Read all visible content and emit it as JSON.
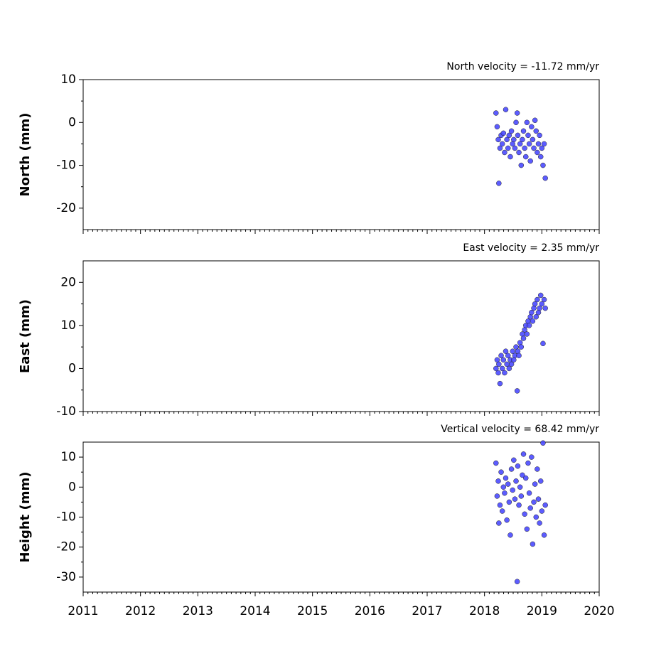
{
  "chart_data": [
    {
      "type": "scatter",
      "title": "North velocity = -11.72 mm/yr",
      "ylabel": "North (mm)",
      "color": "#4a4aff",
      "xlim": [
        2011,
        2020
      ],
      "ylim": [
        -25,
        10
      ],
      "yticks": [
        -20,
        -10,
        0,
        10
      ],
      "x": [
        2018.2,
        2018.22,
        2018.24,
        2018.25,
        2018.27,
        2018.29,
        2018.31,
        2018.33,
        2018.35,
        2018.37,
        2018.39,
        2018.41,
        2018.43,
        2018.45,
        2018.47,
        2018.49,
        2018.51,
        2018.53,
        2018.55,
        2018.57,
        2018.58,
        2018.6,
        2018.62,
        2018.64,
        2018.66,
        2018.68,
        2018.7,
        2018.72,
        2018.74,
        2018.76,
        2018.78,
        2018.8,
        2018.82,
        2018.84,
        2018.86,
        2018.88,
        2018.9,
        2018.92,
        2018.94,
        2018.96,
        2018.98,
        2019.0,
        2019.02,
        2019.04,
        2019.06
      ],
      "values": [
        2.2,
        -1,
        -4,
        -14.2,
        -6,
        -3,
        -5,
        -2.5,
        -7,
        3,
        -4,
        -6,
        -3,
        -8,
        -2,
        -5,
        -4,
        -6,
        0,
        2.2,
        -3,
        -7,
        -5,
        -10,
        -4,
        -2,
        -6,
        -8,
        0,
        -3,
        -5,
        -9,
        -1,
        -4,
        -6,
        0.5,
        -2,
        -7,
        -5,
        -3,
        -8,
        -6,
        -10,
        -5,
        -13
      ]
    },
    {
      "type": "scatter",
      "title": "East velocity = 2.35 mm/yr",
      "ylabel": "East (mm)",
      "color": "#4a4aff",
      "xlim": [
        2011,
        2020
      ],
      "ylim": [
        -10,
        25
      ],
      "yticks": [
        -10,
        0,
        10,
        20
      ],
      "x": [
        2018.2,
        2018.22,
        2018.24,
        2018.25,
        2018.27,
        2018.29,
        2018.31,
        2018.33,
        2018.35,
        2018.37,
        2018.39,
        2018.41,
        2018.43,
        2018.45,
        2018.47,
        2018.49,
        2018.51,
        2018.53,
        2018.55,
        2018.57,
        2018.58,
        2018.6,
        2018.62,
        2018.64,
        2018.66,
        2018.68,
        2018.7,
        2018.72,
        2018.74,
        2018.76,
        2018.78,
        2018.8,
        2018.82,
        2018.84,
        2018.86,
        2018.88,
        2018.9,
        2018.92,
        2018.94,
        2018.96,
        2018.98,
        2019.0,
        2019.02,
        2019.04,
        2019.06
      ],
      "values": [
        0,
        2,
        -1,
        1,
        -3.5,
        3,
        0,
        2,
        -1,
        4,
        1,
        3,
        0,
        2,
        1,
        4,
        2,
        3,
        5,
        -5.2,
        4,
        3,
        6,
        5,
        8,
        7,
        9,
        10,
        8,
        11,
        10,
        12,
        13,
        11,
        14,
        15,
        12,
        16,
        13,
        14,
        17,
        15,
        5.8,
        16,
        14
      ]
    },
    {
      "type": "scatter",
      "title": "Vertical velocity = 68.42 mm/yr",
      "ylabel": "Height (mm)",
      "color": "#4a4aff",
      "xlim": [
        2011,
        2020
      ],
      "ylim": [
        -35,
        15
      ],
      "yticks": [
        -30,
        -20,
        -10,
        0,
        10
      ],
      "xticks": [
        2011,
        2012,
        2013,
        2014,
        2015,
        2016,
        2017,
        2018,
        2019,
        2020
      ],
      "x": [
        2018.2,
        2018.22,
        2018.24,
        2018.25,
        2018.27,
        2018.29,
        2018.31,
        2018.33,
        2018.35,
        2018.37,
        2018.39,
        2018.41,
        2018.43,
        2018.45,
        2018.47,
        2018.49,
        2018.51,
        2018.53,
        2018.55,
        2018.57,
        2018.58,
        2018.6,
        2018.62,
        2018.64,
        2018.66,
        2018.68,
        2018.7,
        2018.72,
        2018.74,
        2018.76,
        2018.78,
        2018.8,
        2018.82,
        2018.84,
        2018.86,
        2018.88,
        2018.9,
        2018.92,
        2018.94,
        2018.96,
        2018.98,
        2019.0,
        2019.02,
        2019.04,
        2019.06
      ],
      "values": [
        8,
        -3,
        2,
        -12,
        -6,
        5,
        -8,
        0,
        -2,
        3,
        -11,
        1,
        -5,
        -16,
        6,
        -1,
        9,
        -4,
        2,
        -31.5,
        7,
        -6,
        0,
        -3,
        4,
        11,
        -9,
        3,
        -14,
        8,
        -2,
        -7,
        10,
        -19,
        -5,
        1,
        -10,
        6,
        -4,
        -12,
        2,
        -8,
        14.7,
        -16,
        -6
      ]
    }
  ]
}
